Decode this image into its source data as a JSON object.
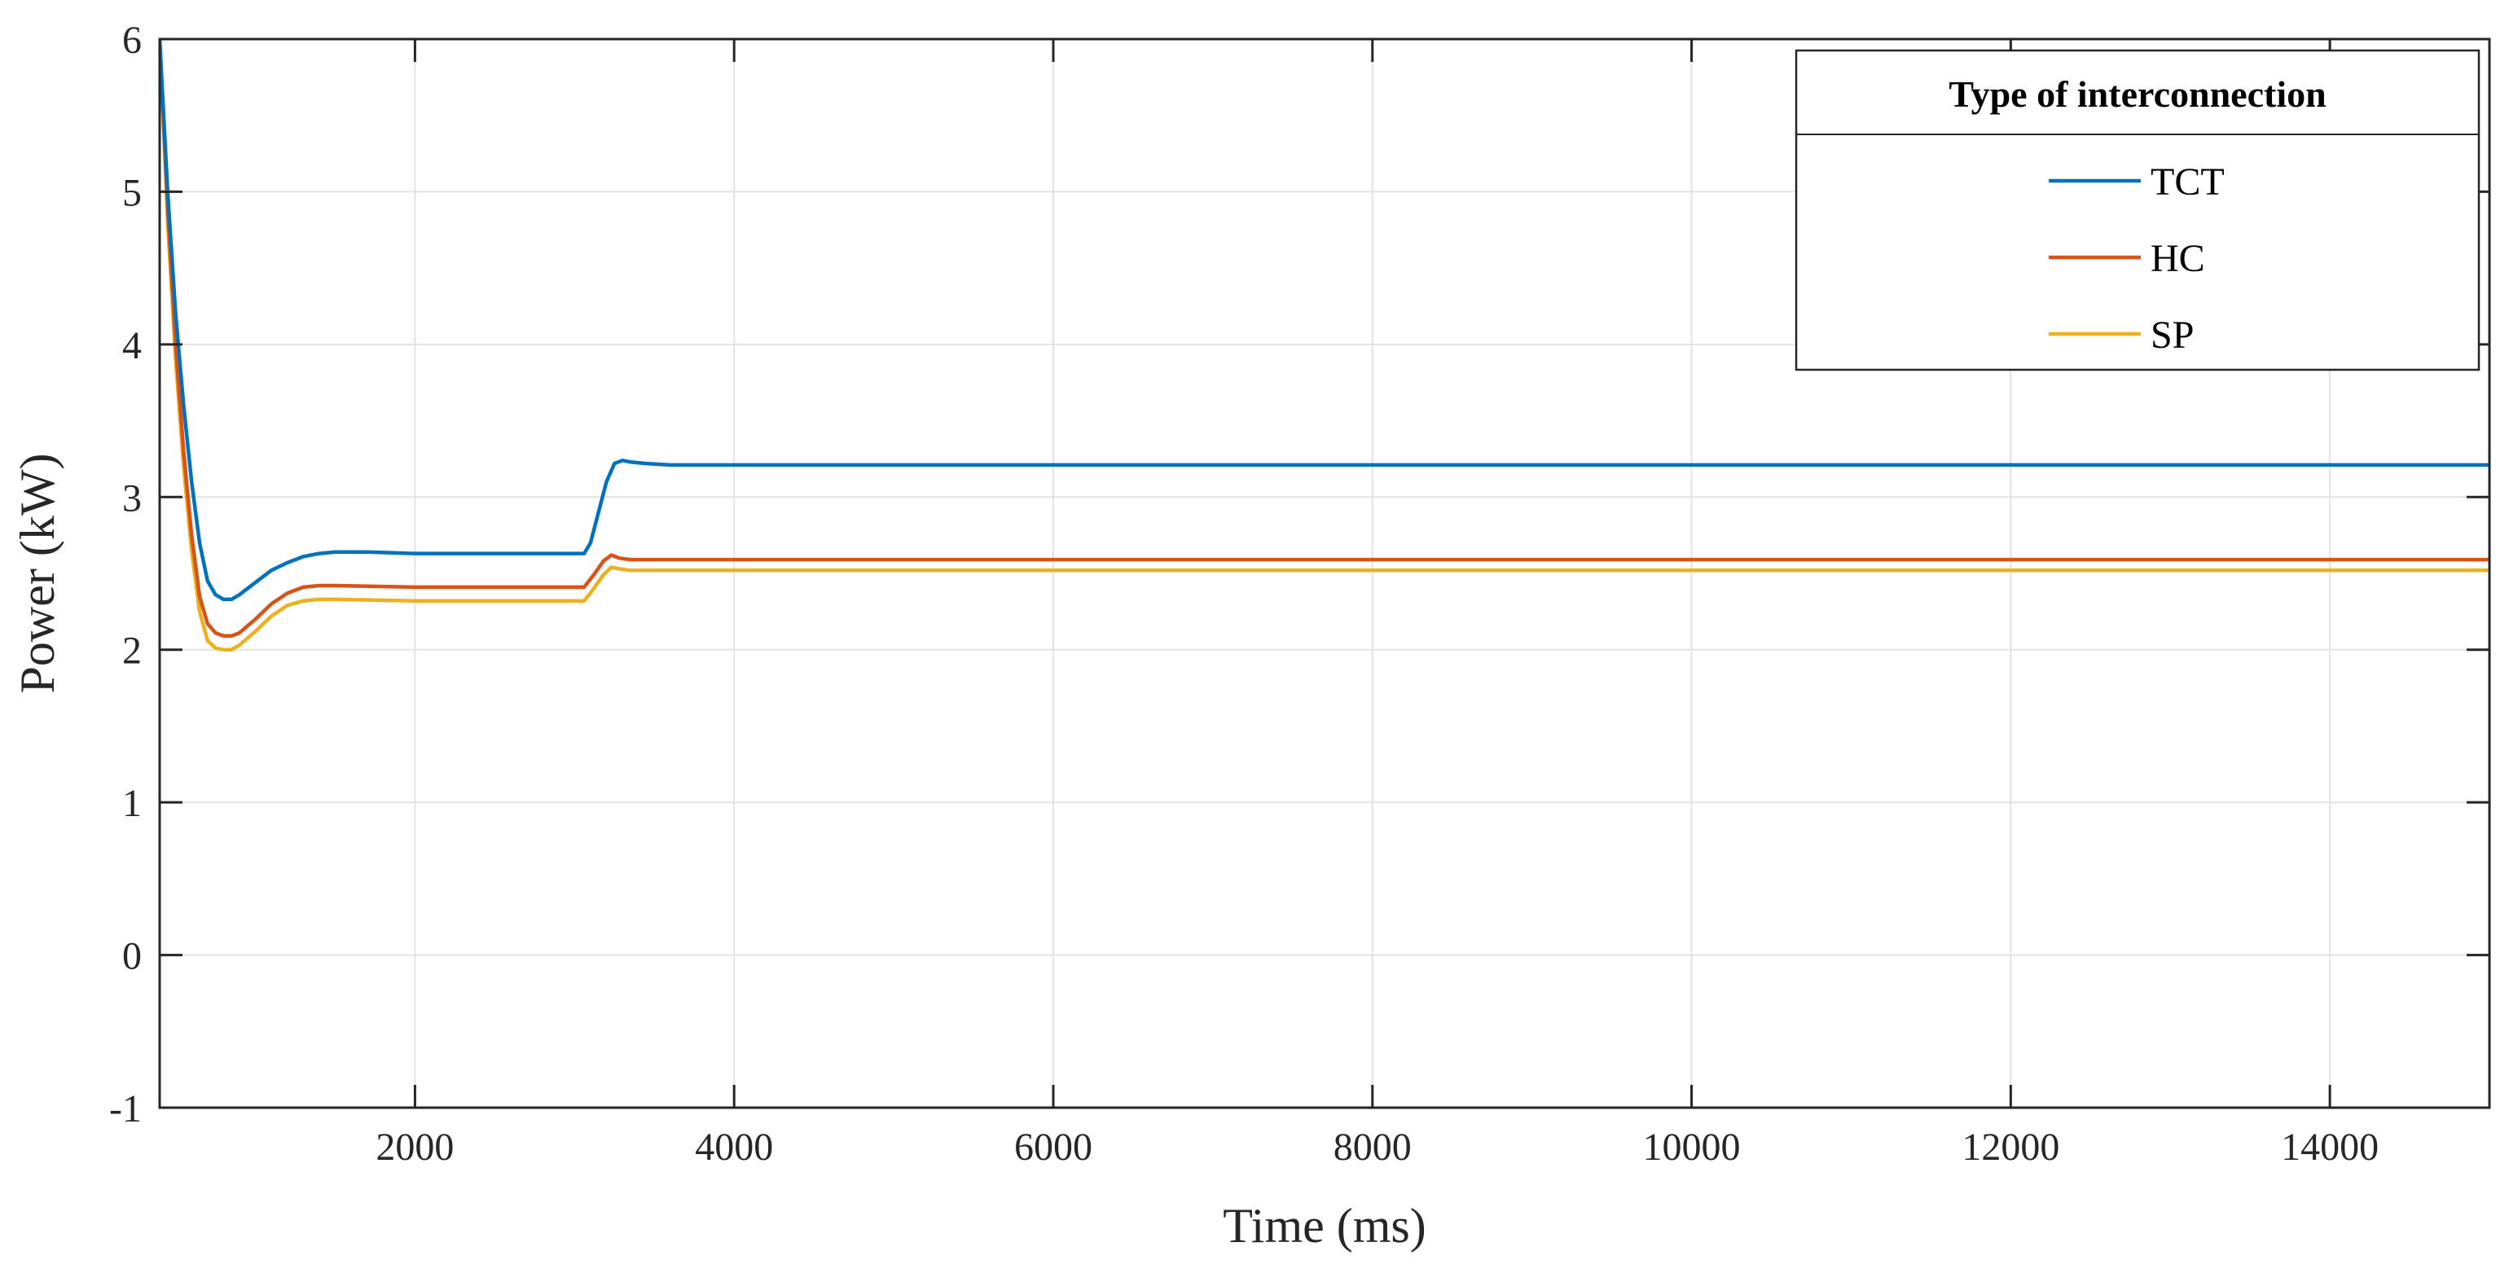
{
  "chart_data": {
    "type": "line",
    "title": "",
    "xlabel": "Time (ms)",
    "ylabel": "Power (kW)",
    "xlim": [
      400,
      15000
    ],
    "ylim": [
      -1,
      6
    ],
    "x_ticks": [
      2000,
      4000,
      6000,
      8000,
      10000,
      12000,
      14000
    ],
    "y_ticks": [
      -1,
      0,
      1,
      2,
      3,
      4,
      5,
      6
    ],
    "x_tick_labels": [
      "2000",
      "4000",
      "6000",
      "8000",
      "10000",
      "12000",
      "14000"
    ],
    "y_tick_labels": [
      "-1",
      "0",
      "1",
      "2",
      "3",
      "4",
      "5",
      "6"
    ],
    "grid": true,
    "legend": {
      "title": "Type of interconnection",
      "position": "top-right"
    },
    "series": [
      {
        "name": "TCT",
        "color": "#0072BD",
        "points": [
          [
            400,
            6.0
          ],
          [
            450,
            5.0
          ],
          [
            500,
            4.2
          ],
          [
            550,
            3.6
          ],
          [
            600,
            3.1
          ],
          [
            650,
            2.7
          ],
          [
            700,
            2.45
          ],
          [
            750,
            2.36
          ],
          [
            800,
            2.33
          ],
          [
            850,
            2.33
          ],
          [
            900,
            2.36
          ],
          [
            1000,
            2.44
          ],
          [
            1100,
            2.52
          ],
          [
            1200,
            2.57
          ],
          [
            1300,
            2.61
          ],
          [
            1400,
            2.63
          ],
          [
            1500,
            2.64
          ],
          [
            1700,
            2.64
          ],
          [
            2000,
            2.63
          ],
          [
            2500,
            2.63
          ],
          [
            3000,
            2.63
          ],
          [
            3060,
            2.63
          ],
          [
            3100,
            2.7
          ],
          [
            3150,
            2.9
          ],
          [
            3200,
            3.1
          ],
          [
            3250,
            3.22
          ],
          [
            3300,
            3.24
          ],
          [
            3350,
            3.23
          ],
          [
            3450,
            3.22
          ],
          [
            3600,
            3.21
          ],
          [
            4000,
            3.21
          ],
          [
            15000,
            3.21
          ]
        ]
      },
      {
        "name": "HC",
        "color": "#D95319",
        "points": [
          [
            400,
            6.0
          ],
          [
            450,
            4.9
          ],
          [
            500,
            4.0
          ],
          [
            550,
            3.3
          ],
          [
            600,
            2.75
          ],
          [
            650,
            2.35
          ],
          [
            700,
            2.17
          ],
          [
            750,
            2.11
          ],
          [
            800,
            2.09
          ],
          [
            850,
            2.09
          ],
          [
            900,
            2.11
          ],
          [
            1000,
            2.2
          ],
          [
            1100,
            2.3
          ],
          [
            1200,
            2.37
          ],
          [
            1300,
            2.41
          ],
          [
            1400,
            2.42
          ],
          [
            1500,
            2.42
          ],
          [
            2000,
            2.41
          ],
          [
            3000,
            2.41
          ],
          [
            3060,
            2.41
          ],
          [
            3120,
            2.49
          ],
          [
            3180,
            2.58
          ],
          [
            3230,
            2.62
          ],
          [
            3280,
            2.6
          ],
          [
            3350,
            2.59
          ],
          [
            3500,
            2.59
          ],
          [
            15000,
            2.59
          ]
        ]
      },
      {
        "name": "SP",
        "color": "#EDB120",
        "points": [
          [
            400,
            6.0
          ],
          [
            450,
            4.8
          ],
          [
            500,
            3.9
          ],
          [
            550,
            3.2
          ],
          [
            600,
            2.65
          ],
          [
            650,
            2.25
          ],
          [
            700,
            2.06
          ],
          [
            750,
            2.01
          ],
          [
            800,
            2.0
          ],
          [
            850,
            2.0
          ],
          [
            900,
            2.03
          ],
          [
            1000,
            2.12
          ],
          [
            1100,
            2.22
          ],
          [
            1200,
            2.29
          ],
          [
            1300,
            2.32
          ],
          [
            1400,
            2.33
          ],
          [
            1500,
            2.33
          ],
          [
            2000,
            2.32
          ],
          [
            3000,
            2.32
          ],
          [
            3060,
            2.32
          ],
          [
            3120,
            2.4
          ],
          [
            3180,
            2.49
          ],
          [
            3230,
            2.54
          ],
          [
            3280,
            2.53
          ],
          [
            3350,
            2.52
          ],
          [
            3500,
            2.52
          ],
          [
            15000,
            2.52
          ]
        ]
      }
    ]
  }
}
